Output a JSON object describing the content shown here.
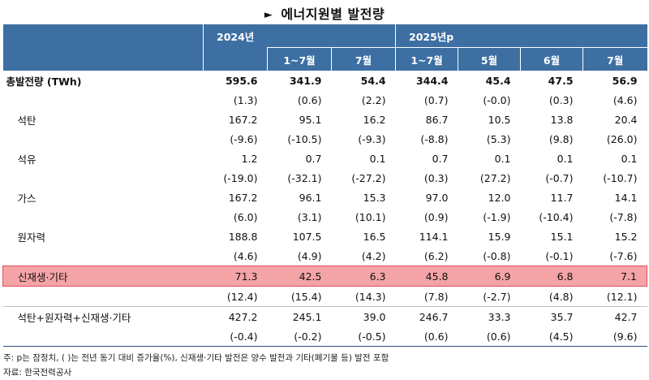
{
  "title": "에너지원별 발전량",
  "title_marker": "►",
  "header": {
    "year2024": "2024년",
    "year2025": "2025년p",
    "sub": [
      "1~7월",
      "7월",
      "1~7월",
      "5월",
      "6월",
      "7월"
    ]
  },
  "rows": [
    {
      "label": "총발전량 (TWh)",
      "values": [
        "595.6",
        "341.9",
        "54.4",
        "344.4",
        "45.4",
        "47.5",
        "56.9"
      ],
      "changes": [
        "(1.3)",
        "(0.6)",
        "(2.2)",
        "(0.7)",
        "(-0.0)",
        "(0.3)",
        "(4.6)"
      ]
    },
    {
      "label": "석탄",
      "values": [
        "167.2",
        "95.1",
        "16.2",
        "86.7",
        "10.5",
        "13.8",
        "20.4"
      ],
      "changes": [
        "(-9.6)",
        "(-10.5)",
        "(-9.3)",
        "(-8.8)",
        "(5.3)",
        "(9.8)",
        "(26.0)"
      ]
    },
    {
      "label": "석유",
      "values": [
        "1.2",
        "0.7",
        "0.1",
        "0.7",
        "0.1",
        "0.1",
        "0.1"
      ],
      "changes": [
        "(-19.0)",
        "(-32.1)",
        "(-27.2)",
        "(0.3)",
        "(27.2)",
        "(-0.7)",
        "(-10.7)"
      ]
    },
    {
      "label": "가스",
      "values": [
        "167.2",
        "96.1",
        "15.3",
        "97.0",
        "12.0",
        "11.7",
        "14.1"
      ],
      "changes": [
        "(6.0)",
        "(3.1)",
        "(10.1)",
        "(0.9)",
        "(-1.9)",
        "(-10.4)",
        "(-7.8)"
      ]
    },
    {
      "label": "원자력",
      "values": [
        "188.8",
        "107.5",
        "16.5",
        "114.1",
        "15.9",
        "15.1",
        "15.2"
      ],
      "changes": [
        "(4.6)",
        "(4.9)",
        "(4.2)",
        "(6.2)",
        "(-0.8)",
        "(-0.1)",
        "(-7.6)"
      ]
    },
    {
      "label": "신재생·기타",
      "values": [
        "71.3",
        "42.5",
        "6.3",
        "45.8",
        "6.9",
        "6.8",
        "7.1"
      ],
      "changes": [
        "(12.4)",
        "(15.4)",
        "(14.3)",
        "(7.8)",
        "(-2.7)",
        "(4.8)",
        "(12.1)"
      ]
    },
    {
      "label": "석탄+원자력+신재생·기타",
      "values": [
        "427.2",
        "245.1",
        "39.0",
        "246.7",
        "33.3",
        "35.7",
        "42.7"
      ],
      "changes": [
        "(-0.4)",
        "(-0.2)",
        "(-0.5)",
        "(0.6)",
        "(0.6)",
        "(4.5)",
        "(9.6)"
      ]
    }
  ],
  "notes": {
    "note": "주: p는 잠정치, (     )는 전년 동기 대비 증가율(%), 신재생·기타 발전은 양수 발전과 기타(폐기물 등) 발전 포함",
    "source": "자료: 한국전력공사"
  }
}
